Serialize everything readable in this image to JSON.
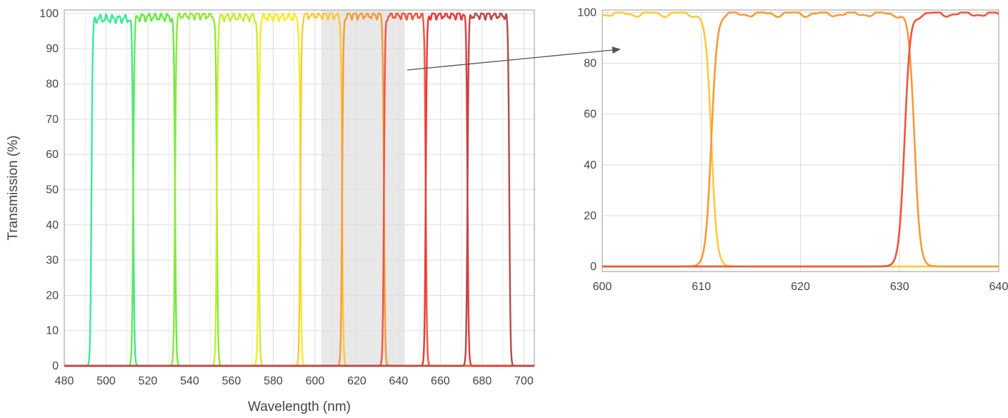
{
  "chart_data": [
    {
      "type": "line",
      "title": "",
      "xlabel": "Wavelength (nm)",
      "ylabel": "Transmission (%)",
      "xlim": [
        480,
        705
      ],
      "ylim": [
        0,
        101
      ],
      "xticks": [
        "480",
        "500",
        "520",
        "540",
        "560",
        "580",
        "600",
        "620",
        "640",
        "660",
        "680",
        "700"
      ],
      "yticks": [
        "0",
        "10",
        "20",
        "30",
        "40",
        "50",
        "60",
        "70",
        "80",
        "90",
        "100"
      ],
      "grid": true,
      "legend": "none",
      "highlight_region": [
        603,
        643
      ],
      "series": [
        {
          "color": "#3de89a",
          "passband": [
            493,
            513
          ],
          "peak": 98.5
        },
        {
          "color": "#6aea45",
          "passband": [
            513,
            533
          ],
          "peak": 99.0
        },
        {
          "color": "#8fe83a",
          "passband": [
            533,
            553
          ],
          "peak": 99.5
        },
        {
          "color": "#c8ec3a",
          "passband": [
            553,
            573
          ],
          "peak": 99.0
        },
        {
          "color": "#f6ec2a",
          "passband": [
            573,
            593
          ],
          "peak": 99.0
        },
        {
          "color": "#fcc93a",
          "passband": [
            593,
            613
          ],
          "peak": 99.5
        },
        {
          "color": "#f79a3a",
          "passband": [
            613,
            633
          ],
          "peak": 99.5
        },
        {
          "color": "#f2553a",
          "passband": [
            633,
            653
          ],
          "peak": 99.5
        },
        {
          "color": "#e8383a",
          "passband": [
            653,
            673
          ],
          "peak": 99.5
        },
        {
          "color": "#b44a4a",
          "passband": [
            673,
            693
          ],
          "peak": 99.5
        }
      ]
    },
    {
      "type": "line",
      "title": "",
      "xlabel": "",
      "ylabel": "",
      "xlim": [
        600,
        640
      ],
      "ylim": [
        -2,
        101
      ],
      "xticks": [
        "600",
        "610",
        "620",
        "630",
        "640"
      ],
      "yticks": [
        "0",
        "20",
        "40",
        "60",
        "80",
        "100"
      ],
      "grid": true,
      "legend": "none",
      "series": [
        {
          "color": "#fcc93a",
          "passband": [
            593,
            611
          ],
          "peak": 99.5
        },
        {
          "color": "#f79a3a",
          "passband": [
            611,
            631.5
          ],
          "peak": 99.5
        },
        {
          "color": "#f2553a",
          "passband": [
            630.5,
            650
          ],
          "peak": 99.5
        }
      ]
    }
  ]
}
